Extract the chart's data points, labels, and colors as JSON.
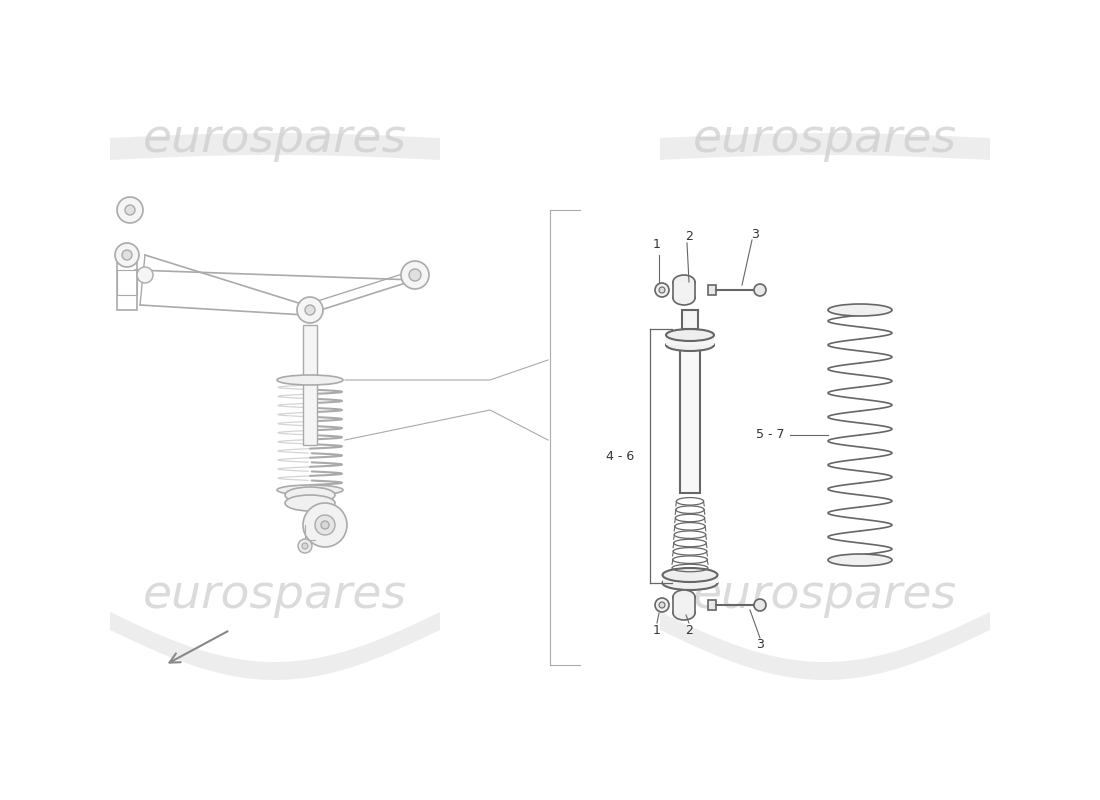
{
  "bg_color": "#ffffff",
  "line_color": "#aaaaaa",
  "drawing_color": "#888888",
  "dark_line": "#666666",
  "watermark_color": "#cccccc",
  "watermark_text": "eurospares",
  "watermark_fontsize": 34,
  "label_46": "4 - 6",
  "label_57": "5 - 7",
  "labels_top": [
    "1",
    "2",
    "3"
  ],
  "labels_bottom": [
    "1",
    "2",
    "3"
  ]
}
